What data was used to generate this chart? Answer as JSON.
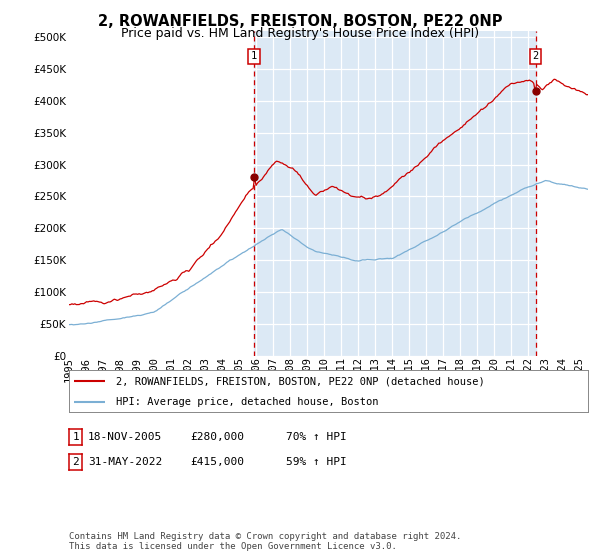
{
  "title": "2, ROWANFIELDS, FREISTON, BOSTON, PE22 0NP",
  "subtitle": "Price paid vs. HM Land Registry's House Price Index (HPI)",
  "background_color": "#dce9f5",
  "outer_bg_color": "#ffffff",
  "red_line_color": "#cc0000",
  "blue_line_color": "#7bafd4",
  "dashed_line_color": "#cc0000",
  "marker_color": "#880000",
  "yticks": [
    0,
    50000,
    100000,
    150000,
    200000,
    250000,
    300000,
    350000,
    400000,
    450000,
    500000
  ],
  "xlabel_years": [
    1995,
    1996,
    1997,
    1998,
    1999,
    2000,
    2001,
    2002,
    2003,
    2004,
    2005,
    2006,
    2007,
    2008,
    2009,
    2010,
    2011,
    2012,
    2013,
    2014,
    2015,
    2016,
    2017,
    2018,
    2019,
    2020,
    2021,
    2022,
    2023,
    2024,
    2025
  ],
  "purchase1_date": "18-NOV-2005",
  "purchase1_price": 280000,
  "purchase1_year": 2005.88,
  "purchase1_hpi": "70% ↑ HPI",
  "purchase2_date": "31-MAY-2022",
  "purchase2_price": 415000,
  "purchase2_year": 2022.42,
  "purchase2_hpi": "59% ↑ HPI",
  "legend_line1": "2, ROWANFIELDS, FREISTON, BOSTON, PE22 0NP (detached house)",
  "legend_line2": "HPI: Average price, detached house, Boston",
  "footnote": "Contains HM Land Registry data © Crown copyright and database right 2024.\nThis data is licensed under the Open Government Licence v3.0.",
  "grid_color": "#c8d8e8",
  "title_fontsize": 10.5,
  "subtitle_fontsize": 9,
  "tick_fontsize": 7.5,
  "legend_fontsize": 7.5,
  "info_fontsize": 8,
  "footnote_fontsize": 6.5
}
